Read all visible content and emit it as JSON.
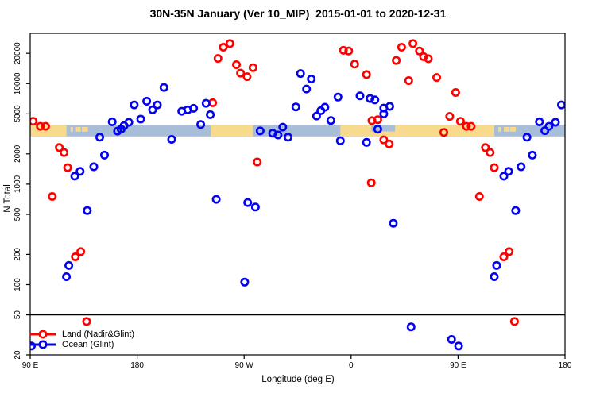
{
  "title": "30N-35N January (Ver 10_MIP)  2015-01-01 to 2020-12-31",
  "chart_data": {
    "type": "scatter",
    "title": "30N-35N January (Ver 10_MIP)  2015-01-01 to 2020-12-31",
    "xlabel": "Longitude (deg E)",
    "ylabel": "N Total",
    "x_axis": {
      "lim": [
        90,
        540
      ],
      "ticks": [
        90,
        180,
        270,
        360,
        450,
        540
      ],
      "tick_labels": [
        "90 E",
        "180",
        "90 W",
        "0",
        "90 E",
        "180"
      ],
      "note": "longitude wraps eastward: 90E to 180 to 90W to 0 to 90E to 180"
    },
    "y_axis": {
      "scale": "log10",
      "lim": [
        20,
        31600
      ],
      "ticks": [
        20,
        50,
        100,
        200,
        500,
        1000,
        2000,
        5000,
        10000,
        20000
      ]
    },
    "reference_line_y": 50,
    "legend": {
      "position": "bottom-left",
      "entries": [
        {
          "label": "Land (Nadir&Glint)",
          "color": "#ff0000"
        },
        {
          "label": "Ocean (Glint)",
          "color": "#0202f0"
        }
      ]
    },
    "map_band": {
      "y_top": 3830,
      "y_bottom": 2980,
      "ocean_color": "#a8bed8",
      "land_color": "#f8da8f",
      "land_segments_deg": [
        [
          90,
          120.5
        ],
        [
          242,
          277.5
        ],
        [
          351,
          480.5
        ]
      ],
      "mediterranean_patch_deg": [
        377,
        397
      ],
      "island_specks_deg": [
        [
          124,
          126
        ],
        [
          128.5,
          132.5
        ],
        [
          133.5,
          138.5
        ],
        [
          484,
          486
        ],
        [
          488.5,
          492.5
        ],
        [
          493.5,
          498.5
        ]
      ]
    },
    "series": [
      {
        "name": "Land (Nadir&Glint)",
        "color": "#ff0000",
        "points": [
          [
            92.5,
            4220
          ],
          [
            98.5,
            3760
          ],
          [
            103,
            3760
          ],
          [
            114.5,
            2310
          ],
          [
            118.5,
            2060
          ],
          [
            121.5,
            1460
          ],
          [
            108.5,
            753
          ],
          [
            128,
            189
          ],
          [
            132.5,
            213
          ],
          [
            137.5,
            43
          ],
          [
            243.5,
            6450
          ],
          [
            248,
            17800
          ],
          [
            252.5,
            23000
          ],
          [
            258,
            25000
          ],
          [
            263.5,
            15400
          ],
          [
            267,
            12700
          ],
          [
            272.5,
            11700
          ],
          [
            277.5,
            14400
          ],
          [
            281,
            1660
          ],
          [
            353.5,
            21400
          ],
          [
            358,
            21100
          ],
          [
            363,
            15600
          ],
          [
            373,
            12300
          ],
          [
            377,
            1030
          ],
          [
            377.5,
            4280
          ],
          [
            382.5,
            4380
          ],
          [
            387.5,
            2760
          ],
          [
            392,
            2510
          ],
          [
            398,
            17000
          ],
          [
            402.5,
            23000
          ],
          [
            408.5,
            10700
          ],
          [
            412,
            25000
          ],
          [
            417.5,
            21100
          ],
          [
            421,
            18500
          ],
          [
            425,
            17700
          ],
          [
            432,
            11500
          ],
          [
            438,
            3270
          ],
          [
            443,
            4720
          ],
          [
            448,
            8150
          ],
          [
            452,
            4220
          ],
          [
            457,
            3760
          ],
          [
            461,
            3760
          ],
          [
            468,
            753
          ],
          [
            473,
            2310
          ],
          [
            477,
            2060
          ],
          [
            480.5,
            1460
          ],
          [
            488.5,
            189
          ],
          [
            493,
            213
          ],
          [
            497.5,
            43
          ]
        ]
      },
      {
        "name": "Ocean (Glint)",
        "color": "#0202f0",
        "points": [
          [
            91,
            24.5
          ],
          [
            120.5,
            120
          ],
          [
            122.5,
            155
          ],
          [
            127.5,
            1200
          ],
          [
            132,
            1340
          ],
          [
            138,
            546
          ],
          [
            143.5,
            1490
          ],
          [
            148.5,
            2930
          ],
          [
            152.5,
            1940
          ],
          [
            159,
            4170
          ],
          [
            163.5,
            3370
          ],
          [
            166.5,
            3520
          ],
          [
            169,
            3810
          ],
          [
            173,
            4120
          ],
          [
            177.5,
            6140
          ],
          [
            183,
            4430
          ],
          [
            188,
            6680
          ],
          [
            193,
            5480
          ],
          [
            197,
            6140
          ],
          [
            202.5,
            9160
          ],
          [
            209,
            2790
          ],
          [
            217.5,
            5310
          ],
          [
            222.5,
            5480
          ],
          [
            227.5,
            5680
          ],
          [
            233.5,
            3920
          ],
          [
            238,
            6370
          ],
          [
            241.5,
            4910
          ],
          [
            246.5,
            705
          ],
          [
            270.5,
            106
          ],
          [
            273,
            656
          ],
          [
            279.5,
            591
          ],
          [
            283.5,
            3380
          ],
          [
            294,
            3210
          ],
          [
            298.5,
            3080
          ],
          [
            302.5,
            3690
          ],
          [
            307,
            2930
          ],
          [
            313.5,
            5850
          ],
          [
            317.5,
            12600
          ],
          [
            322.5,
            8830
          ],
          [
            326.5,
            11100
          ],
          [
            331,
            4760
          ],
          [
            334.5,
            5380
          ],
          [
            338,
            5820
          ],
          [
            343,
            4300
          ],
          [
            349,
            7330
          ],
          [
            351,
            2700
          ],
          [
            367.5,
            7550
          ],
          [
            373,
            2600
          ],
          [
            376,
            7100
          ],
          [
            380,
            6880
          ],
          [
            382.5,
            3520
          ],
          [
            387.5,
            5710
          ],
          [
            387.5,
            5000
          ],
          [
            392.5,
            5930
          ],
          [
            395.5,
            408
          ],
          [
            410.5,
            38
          ],
          [
            444.5,
            28.5
          ],
          [
            450.5,
            24.5
          ],
          [
            480.5,
            120
          ],
          [
            482.5,
            155
          ],
          [
            488.5,
            1200
          ],
          [
            492.5,
            1340
          ],
          [
            498.5,
            546
          ],
          [
            503,
            1490
          ],
          [
            508,
            2930
          ],
          [
            512.5,
            1940
          ],
          [
            518.5,
            4170
          ],
          [
            523,
            3400
          ],
          [
            526.5,
            3760
          ],
          [
            532,
            4120
          ],
          [
            537,
            6140
          ]
        ]
      }
    ]
  }
}
